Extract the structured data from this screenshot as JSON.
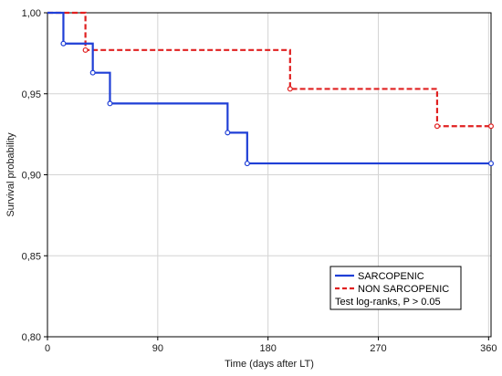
{
  "chart_data": {
    "type": "line",
    "subtype": "kaplan-meier step",
    "title": "",
    "xlabel": "Time (days after LT)",
    "ylabel": "Survival probability",
    "xlim": [
      0,
      362
    ],
    "ylim": [
      0.8,
      1.0
    ],
    "xticks": [
      0,
      90,
      180,
      270,
      360
    ],
    "yticks": [
      0.8,
      0.85,
      0.9,
      0.95,
      1.0
    ],
    "xtick_labels": [
      "0",
      "90",
      "180",
      "270",
      "360"
    ],
    "ytick_labels": [
      "0,80",
      "0,85",
      "0,90",
      "0,95",
      "1,00"
    ],
    "grid": true,
    "legend_position": "bottom-right",
    "annotation": "Test log-ranks, P > 0.05",
    "series": [
      {
        "name": "SARCOPENIC",
        "color": "#1f3fd6",
        "line_style": "solid",
        "steps": [
          [
            0,
            1.0
          ],
          [
            13,
            0.981
          ],
          [
            37,
            0.963
          ],
          [
            51,
            0.944
          ],
          [
            147,
            0.926
          ],
          [
            163,
            0.907
          ],
          [
            362,
            0.907
          ]
        ],
        "censor_points": [
          [
            13,
            0.981
          ],
          [
            37,
            0.963
          ],
          [
            51,
            0.944
          ],
          [
            147,
            0.926
          ],
          [
            163,
            0.907
          ],
          [
            362,
            0.907
          ]
        ]
      },
      {
        "name": "NON SARCOPENIC",
        "color": "#e02020",
        "line_style": "dashed",
        "steps": [
          [
            0,
            1.0
          ],
          [
            31,
            0.977
          ],
          [
            198,
            0.953
          ],
          [
            318,
            0.93
          ],
          [
            362,
            0.93
          ]
        ],
        "censor_points": [
          [
            31,
            0.977
          ],
          [
            198,
            0.953
          ],
          [
            318,
            0.93
          ],
          [
            362,
            0.93
          ]
        ]
      }
    ]
  }
}
